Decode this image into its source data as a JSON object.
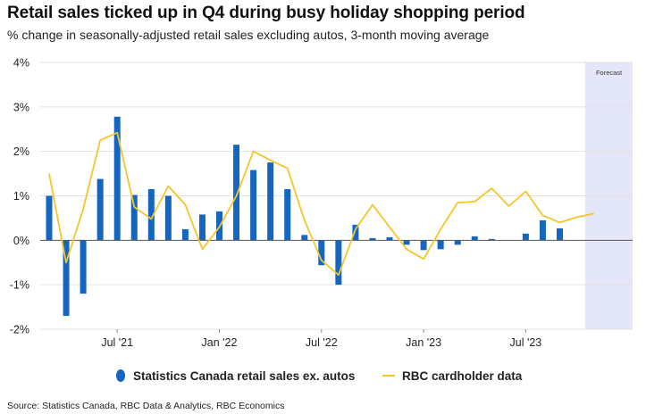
{
  "title": "Retail sales ticked up in Q4 during busy holiday shopping period",
  "subtitle": "% change in seasonally-adjusted retail sales excluding autos, 3-month moving average",
  "source": "Source: Statistics Canada, RBC Data & Analytics, RBC Economics",
  "colors": {
    "bars": "#1466c0",
    "line": "#f5c52a",
    "forecast_band": "#e4e6fa",
    "grid": "#e2e2e2",
    "zero": "#555555"
  },
  "chart_data": {
    "type": "bar",
    "title": "Retail sales ticked up in Q4 during busy holiday shopping period",
    "ylabel": "% change in seasonally-adjusted retail sales excluding autos, 3-month moving average",
    "ylim": [
      -2,
      4
    ],
    "y_ticks": [
      -2,
      -1,
      0,
      1,
      2,
      3,
      4
    ],
    "y_tick_labels": [
      "-2%",
      "-1%",
      "0%",
      "1%",
      "2%",
      "3%",
      "4%"
    ],
    "categories": [
      "Mar 2021",
      "Apr 2021",
      "May 2021",
      "Jun 2021",
      "Jul 2021",
      "Aug 2021",
      "Sep 2021",
      "Oct 2021",
      "Nov 2021",
      "Dec 2021",
      "Jan 2022",
      "Feb 2022",
      "Mar 2022",
      "Apr 2022",
      "May 2022",
      "Jun 2022",
      "Jul 2022",
      "Aug 2022",
      "Sep 2022",
      "Oct 2022",
      "Nov 2022",
      "Dec 2022",
      "Jan 2023",
      "Feb 2023",
      "Mar 2023",
      "Apr 2023",
      "May 2023",
      "Jun 2023",
      "Jul 2023",
      "Aug 2023",
      "Sep 2023",
      "Oct 2023",
      "Nov 2023",
      "Dec 2023"
    ],
    "x_tick_labels": [
      {
        "label": "Jul '21",
        "category": "Jul 2021"
      },
      {
        "label": "Jan '22",
        "category": "Jan 2022"
      },
      {
        "label": "Jul '22",
        "category": "Jul 2022"
      },
      {
        "label": "Jan '23",
        "category": "Jan 2023"
      },
      {
        "label": "Jul '23",
        "category": "Jul 2023"
      }
    ],
    "forecast": {
      "label": "Forecast",
      "start": "Nov 2023"
    },
    "series": [
      {
        "name": "Statistics Canada retail sales ex. autos",
        "type": "bar",
        "values": [
          1.0,
          -1.7,
          -1.2,
          1.38,
          2.78,
          1.02,
          1.15,
          1.0,
          0.25,
          0.58,
          0.65,
          2.15,
          1.58,
          1.75,
          1.15,
          0.12,
          -0.56,
          -1.0,
          0.35,
          0.05,
          0.07,
          -0.1,
          -0.22,
          -0.2,
          -0.1,
          0.09,
          0.03,
          0.0,
          0.15,
          0.45,
          0.27,
          null,
          null,
          null
        ]
      },
      {
        "name": "RBC cardholder data",
        "type": "line",
        "values": [
          1.5,
          -0.5,
          0.7,
          2.25,
          2.42,
          0.75,
          0.48,
          1.22,
          0.8,
          -0.2,
          0.3,
          1.0,
          2.0,
          1.8,
          1.62,
          0.45,
          -0.45,
          -0.78,
          0.25,
          0.8,
          0.3,
          -0.2,
          -0.42,
          0.25,
          0.85,
          0.87,
          1.17,
          0.77,
          1.1,
          0.56,
          0.4,
          0.52,
          0.6,
          null
        ]
      }
    ],
    "legend": [
      {
        "label": "Statistics Canada retail sales ex. autos",
        "marker": "dot"
      },
      {
        "label": "RBC cardholder data",
        "marker": "line"
      }
    ]
  }
}
